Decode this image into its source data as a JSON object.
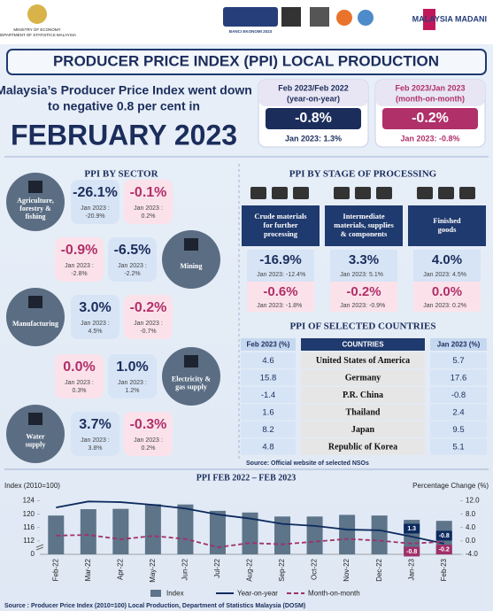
{
  "header": {
    "ministry": "MINISTRY OF ECONOMY",
    "department": "DEPARTMENT OF STATISTICS MALAYSIA",
    "census": "BANCI EKONOMI 2023",
    "madani": "MALAYSIA MADANI"
  },
  "title": "PRODUCER PRICE INDEX (PPI) LOCAL PRODUCTION",
  "headline": [
    "Malaysia’s Producer Price Index went down",
    "to negative 0.8 per cent in"
  ],
  "month": "FEBRUARY 2023",
  "summary": [
    {
      "period": "Feb 2023/Feb 2022",
      "basis": "(year-on-year)",
      "value": "-0.8%",
      "previous": "Jan 2023: 1.3%"
    },
    {
      "period": "Feb 2023/Jan 2023",
      "basis": "(month-on-month)",
      "value": "-0.2%",
      "previous": "Jan 2023: -0.8%"
    }
  ],
  "sector": {
    "title": "PPI BY SECTOR",
    "prev_label": "Jan 2023 :",
    "items": [
      {
        "name": [
          "Agriculture,",
          "forestry &",
          "fishing"
        ],
        "yoy": "-26.1%",
        "yoy_prev": "-20.9%",
        "mom": "-0.1%",
        "mom_prev": "0.2%"
      },
      {
        "name": [
          "Mining"
        ],
        "yoy": "-6.5%",
        "yoy_prev": "-2.2%",
        "mom": "-0.9%",
        "mom_prev": "-2.8%"
      },
      {
        "name": [
          "Manufacturing"
        ],
        "yoy": "3.0%",
        "yoy_prev": "4.5%",
        "mom": "-0.2%",
        "mom_prev": "-0.7%"
      },
      {
        "name": [
          "Electricity &",
          "gas supply"
        ],
        "yoy": "1.0%",
        "yoy_prev": "1.2%",
        "mom": "0.0%",
        "mom_prev": "0.3%"
      },
      {
        "name": [
          "Water",
          "supply"
        ],
        "yoy": "3.7%",
        "yoy_prev": "3.8%",
        "mom": "-0.3%",
        "mom_prev": "0.2%"
      }
    ]
  },
  "stage": {
    "title": "PPI BY STAGE OF PROCESSING",
    "prev_label": "Jan 2023:",
    "items": [
      {
        "name": [
          "Crude materials",
          "for further",
          "processing"
        ],
        "yoy": "-16.9%",
        "yoy_prev": "-12.4%",
        "mom": "-0.6%",
        "mom_prev": "-1.8%"
      },
      {
        "name": [
          "Intermediate",
          "materials, supplies",
          "& components"
        ],
        "yoy": "3.3%",
        "yoy_prev": "5.1%",
        "mom": "-0.2%",
        "mom_prev": "-0.9%"
      },
      {
        "name": [
          "Finished",
          "goods"
        ],
        "yoy": "4.0%",
        "yoy_prev": "4.5%",
        "mom": "0.0%",
        "mom_prev": "0.2%"
      }
    ]
  },
  "countries": {
    "title": "PPI OF SELECTED COUNTRIES",
    "columns": [
      "Feb 2023 (%)",
      "COUNTRIES",
      "Jan 2023 (%)"
    ],
    "rows": [
      [
        "4.6",
        "United States of America",
        "5.7"
      ],
      [
        "15.8",
        "Germany",
        "17.6"
      ],
      [
        "-1.4",
        "P.R. China",
        "-0.8"
      ],
      [
        "1.6",
        "Thailand",
        "2.4"
      ],
      [
        "8.2",
        "Japan",
        "9.5"
      ],
      [
        "4.8",
        "Republic of Korea",
        "5.1"
      ]
    ],
    "source": "Source: Official website of selected NSOs"
  },
  "chart_data": {
    "type": "combo",
    "title": "PPI FEB 2022  – FEB 2023",
    "y_label": "Index (2010=100)",
    "y2_label": "Percentage Change (%)",
    "categories": [
      "Feb-22",
      "Mar-22",
      "Apr-22",
      "May-22",
      "Jun-22",
      "Jul-22",
      "Aug-22",
      "Sep-22",
      "Oct-22",
      "Nov-22",
      "Dec-22",
      "Jan-23",
      "Feb-23"
    ],
    "series": [
      {
        "name": "Index",
        "type": "bar",
        "color": "#5d7489",
        "values": [
          119.6,
          121.5,
          121.6,
          123.0,
          122.9,
          121.0,
          120.5,
          119.3,
          119.3,
          119.8,
          119.6,
          118.3,
          118.0
        ]
      },
      {
        "name": "Year-on-year",
        "type": "line",
        "axis": "y2",
        "color": "#0d2a5e",
        "values": [
          10.0,
          11.8,
          11.6,
          10.8,
          9.7,
          7.9,
          6.7,
          5.1,
          4.5,
          3.4,
          3.2,
          1.3,
          -0.8
        ],
        "value_labels": [
          null,
          null,
          null,
          null,
          null,
          null,
          null,
          null,
          null,
          null,
          null,
          "1.3",
          "-0.8"
        ]
      },
      {
        "name": "Month-on-month",
        "type": "line",
        "axis": "y2",
        "dashed": true,
        "color": "#a0306a",
        "values": [
          1.6,
          1.8,
          0.5,
          1.5,
          0.6,
          -1.9,
          -0.6,
          -1.0,
          -0.2,
          0.6,
          0.1,
          -0.8,
          -0.2
        ],
        "value_labels": [
          null,
          null,
          null,
          null,
          null,
          null,
          null,
          null,
          null,
          null,
          null,
          "-0.8",
          "-0.2"
        ]
      }
    ],
    "ylim": [
      108,
      126
    ],
    "yticks": [
      112,
      116,
      120,
      124
    ],
    "y_break_label": "0",
    "y2lim": [
      -4,
      14
    ],
    "y2ticks": [
      {
        "value": -4,
        "label": "-4.0"
      },
      {
        "value": 0,
        "label": "0.0"
      },
      {
        "value": 4,
        "label": "4.0"
      },
      {
        "value": 8,
        "label": "8.0"
      },
      {
        "value": 12,
        "label": "12.0"
      }
    ],
    "grid": false,
    "legend": "bottom"
  },
  "source": "Source : Producer Price Index (2010=100) Local Production, Department of Statistics Malaysia (DOSM)"
}
